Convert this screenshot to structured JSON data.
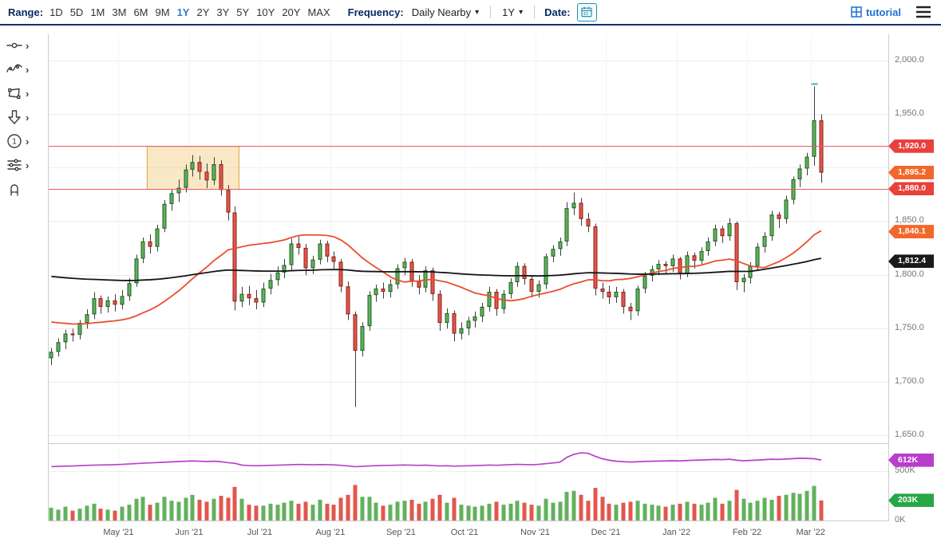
{
  "toolbar": {
    "range_label": "Range:",
    "ranges": [
      "1D",
      "5D",
      "1M",
      "3M",
      "6M",
      "9M",
      "1Y",
      "2Y",
      "3Y",
      "5Y",
      "10Y",
      "20Y",
      "MAX"
    ],
    "active_range": "1Y",
    "frequency_label": "Frequency:",
    "frequency_value": "Daily Nearby",
    "period_value": "1Y",
    "date_label": "Date:",
    "tutorial_label": "tutorial"
  },
  "icons": {
    "caret": "▾",
    "chevron": "›"
  },
  "drawing_tools": [
    {
      "name": "trendline-tool",
      "chevron": true
    },
    {
      "name": "wave-tool",
      "chevron": true
    },
    {
      "name": "shape-tool",
      "chevron": true
    },
    {
      "name": "arrow-tool",
      "chevron": true
    },
    {
      "name": "annotation-number-tool",
      "chevron": true
    },
    {
      "name": "indicator-settings-tool",
      "chevron": true
    },
    {
      "name": "magnet-tool",
      "chevron": false
    }
  ],
  "price_axis": {
    "ticks": [
      {
        "label": "2,000.0",
        "value": 2000
      },
      {
        "label": "1,950.0",
        "value": 1950
      },
      {
        "label": "1,850.0",
        "value": 1850
      },
      {
        "label": "1,800.0",
        "value": 1800
      },
      {
        "label": "1,750.0",
        "value": 1750
      },
      {
        "label": "1,700.0",
        "value": 1700
      },
      {
        "label": "1,650.0",
        "value": 1650
      }
    ]
  },
  "price_badges": [
    {
      "label": "1,920.0",
      "value": 1920.0,
      "bg": "#e8413c",
      "kind": "alert"
    },
    {
      "label": "1,895.2",
      "value": 1895.2,
      "bg": "#f2682a",
      "kind": "last"
    },
    {
      "label": "1,880.0",
      "value": 1880.0,
      "bg": "#e8413c",
      "kind": "alert"
    },
    {
      "label": "1,840.1",
      "value": 1840.1,
      "bg": "#f2682a",
      "kind": "indicator"
    },
    {
      "label": "1,812.4",
      "value": 1812.4,
      "bg": "#1a1a1a",
      "kind": "indicator"
    }
  ],
  "volume_axis": {
    "ticks": [
      {
        "label": "500K",
        "value": 500
      },
      {
        "label": "0K",
        "value": 0
      }
    ]
  },
  "volume_badges": [
    {
      "label": "612K",
      "value": 612,
      "bg": "#b93ecb",
      "kind": "open-interest"
    },
    {
      "label": "203K",
      "value": 203,
      "bg": "#28a745",
      "kind": "volume"
    }
  ],
  "chart_data": {
    "type": "candlestick",
    "ylim": [
      1645,
      2025
    ],
    "volume_ylim": [
      0,
      750
    ],
    "volume_unit": "K",
    "right_padding_bars": 9,
    "grid_values": [
      2000,
      1950,
      1900,
      1850,
      1800,
      1750,
      1700,
      1650
    ],
    "x_month_starts": [
      {
        "label": "May '21",
        "bar": 10
      },
      {
        "label": "Jun '21",
        "bar": 20
      },
      {
        "label": "Jul '21",
        "bar": 30
      },
      {
        "label": "Aug '21",
        "bar": 40
      },
      {
        "label": "Sep '21",
        "bar": 50
      },
      {
        "label": "Oct '21",
        "bar": 59
      },
      {
        "label": "Nov '21",
        "bar": 69
      },
      {
        "label": "Dec '21",
        "bar": 79
      },
      {
        "label": "Jan '22",
        "bar": 89
      },
      {
        "label": "Feb '22",
        "bar": 99
      },
      {
        "label": "Mar '22",
        "bar": 108
      }
    ],
    "alert_lines": {
      "values": [
        1920,
        1880
      ],
      "color": "#f0566a"
    },
    "highlight_box": {
      "from_bar": 14,
      "to_bar": 27,
      "top": 1920,
      "bottom": 1880,
      "fill": "rgba(243,214,150,0.55)",
      "border": "#dca33f"
    },
    "spike_marker": {
      "bar": 108,
      "color": "#35b8c4"
    },
    "moving_averages": [
      {
        "name": "sma-fast",
        "period": 25,
        "seed": 1757,
        "color": "#e8502e",
        "last_value": 1840.1
      },
      {
        "name": "sma-slow",
        "period": 100,
        "seed": 1799,
        "color": "#151515",
        "last_value": 1812.4
      }
    ],
    "last_price": 1895.2,
    "colors": {
      "up_fill": "#62b15c",
      "up_stroke": "#1d5e23",
      "down_fill": "#e2574d",
      "down_stroke": "#8e1f17",
      "wick": "#3d3d3d",
      "open_interest": "#b93ecb",
      "grid": "#ededed",
      "month_grid": "#f4f4f4",
      "frame": "#cccccc"
    },
    "ohlc": [
      [
        1722,
        1732,
        1716,
        1728
      ],
      [
        1728,
        1741,
        1724,
        1737
      ],
      [
        1737,
        1749,
        1731,
        1745
      ],
      [
        1745,
        1750,
        1738,
        1744
      ],
      [
        1744,
        1758,
        1740,
        1755
      ],
      [
        1755,
        1768,
        1750,
        1763
      ],
      [
        1763,
        1784,
        1759,
        1778
      ],
      [
        1778,
        1781,
        1764,
        1770
      ],
      [
        1770,
        1780,
        1765,
        1776
      ],
      [
        1776,
        1782,
        1766,
        1772
      ],
      [
        1772,
        1786,
        1768,
        1780
      ],
      [
        1780,
        1797,
        1776,
        1792
      ],
      [
        1792,
        1819,
        1789,
        1815
      ],
      [
        1815,
        1835,
        1811,
        1831
      ],
      [
        1831,
        1838,
        1820,
        1826
      ],
      [
        1826,
        1847,
        1822,
        1843
      ],
      [
        1843,
        1870,
        1840,
        1866
      ],
      [
        1866,
        1880,
        1860,
        1876
      ],
      [
        1876,
        1889,
        1868,
        1881
      ],
      [
        1881,
        1903,
        1877,
        1898
      ],
      [
        1898,
        1912,
        1892,
        1905
      ],
      [
        1905,
        1911,
        1889,
        1896
      ],
      [
        1896,
        1904,
        1881,
        1888
      ],
      [
        1888,
        1910,
        1884,
        1903
      ],
      [
        1903,
        1907,
        1874,
        1879
      ],
      [
        1879,
        1884,
        1851,
        1858
      ],
      [
        1858,
        1864,
        1767,
        1775
      ],
      [
        1775,
        1789,
        1770,
        1782
      ],
      [
        1782,
        1790,
        1772,
        1778
      ],
      [
        1778,
        1786,
        1768,
        1774
      ],
      [
        1774,
        1793,
        1770,
        1787
      ],
      [
        1787,
        1801,
        1782,
        1795
      ],
      [
        1795,
        1808,
        1790,
        1802
      ],
      [
        1802,
        1815,
        1797,
        1809
      ],
      [
        1809,
        1834,
        1805,
        1829
      ],
      [
        1829,
        1836,
        1819,
        1825
      ],
      [
        1825,
        1829,
        1800,
        1806
      ],
      [
        1806,
        1818,
        1801,
        1814
      ],
      [
        1814,
        1833,
        1810,
        1829
      ],
      [
        1829,
        1832,
        1812,
        1817
      ],
      [
        1817,
        1822,
        1806,
        1812
      ],
      [
        1812,
        1815,
        1784,
        1789
      ],
      [
        1789,
        1794,
        1758,
        1763
      ],
      [
        1763,
        1766,
        1677,
        1729
      ],
      [
        1729,
        1756,
        1724,
        1752
      ],
      [
        1752,
        1785,
        1748,
        1781
      ],
      [
        1781,
        1791,
        1775,
        1787
      ],
      [
        1787,
        1793,
        1778,
        1784
      ],
      [
        1784,
        1796,
        1779,
        1791
      ],
      [
        1791,
        1810,
        1787,
        1806
      ],
      [
        1806,
        1816,
        1800,
        1812
      ],
      [
        1812,
        1815,
        1789,
        1794
      ],
      [
        1794,
        1800,
        1782,
        1788
      ],
      [
        1788,
        1808,
        1784,
        1804
      ],
      [
        1804,
        1807,
        1776,
        1782
      ],
      [
        1782,
        1786,
        1748,
        1755
      ],
      [
        1755,
        1769,
        1750,
        1764
      ],
      [
        1764,
        1767,
        1738,
        1745
      ],
      [
        1745,
        1756,
        1740,
        1750
      ],
      [
        1750,
        1761,
        1744,
        1757
      ],
      [
        1757,
        1766,
        1751,
        1761
      ],
      [
        1761,
        1774,
        1756,
        1770
      ],
      [
        1770,
        1789,
        1766,
        1784
      ],
      [
        1784,
        1787,
        1762,
        1768
      ],
      [
        1768,
        1786,
        1764,
        1782
      ],
      [
        1782,
        1797,
        1778,
        1793
      ],
      [
        1793,
        1812,
        1789,
        1808
      ],
      [
        1808,
        1811,
        1791,
        1796
      ],
      [
        1796,
        1800,
        1779,
        1784
      ],
      [
        1784,
        1795,
        1779,
        1791
      ],
      [
        1791,
        1820,
        1787,
        1817
      ],
      [
        1817,
        1828,
        1812,
        1824
      ],
      [
        1824,
        1835,
        1818,
        1831
      ],
      [
        1831,
        1868,
        1827,
        1862
      ],
      [
        1862,
        1877,
        1856,
        1867
      ],
      [
        1867,
        1872,
        1846,
        1852
      ],
      [
        1852,
        1858,
        1840,
        1845
      ],
      [
        1845,
        1848,
        1781,
        1787
      ],
      [
        1787,
        1793,
        1778,
        1784
      ],
      [
        1784,
        1790,
        1773,
        1779
      ],
      [
        1779,
        1789,
        1774,
        1784
      ],
      [
        1784,
        1787,
        1764,
        1770
      ],
      [
        1770,
        1774,
        1758,
        1766
      ],
      [
        1766,
        1790,
        1762,
        1787
      ],
      [
        1787,
        1803,
        1783,
        1799
      ],
      [
        1799,
        1809,
        1794,
        1805
      ],
      [
        1805,
        1814,
        1800,
        1810
      ],
      [
        1810,
        1813,
        1801,
        1808
      ],
      [
        1808,
        1819,
        1803,
        1815
      ],
      [
        1815,
        1817,
        1796,
        1801
      ],
      [
        1801,
        1822,
        1798,
        1818
      ],
      [
        1818,
        1821,
        1806,
        1813
      ],
      [
        1813,
        1826,
        1809,
        1822
      ],
      [
        1822,
        1835,
        1818,
        1831
      ],
      [
        1831,
        1847,
        1827,
        1843
      ],
      [
        1843,
        1846,
        1830,
        1836
      ],
      [
        1836,
        1853,
        1832,
        1848
      ],
      [
        1848,
        1850,
        1786,
        1793
      ],
      [
        1793,
        1801,
        1784,
        1797
      ],
      [
        1797,
        1812,
        1792,
        1808
      ],
      [
        1808,
        1830,
        1804,
        1826
      ],
      [
        1826,
        1840,
        1821,
        1836
      ],
      [
        1836,
        1860,
        1832,
        1856
      ],
      [
        1856,
        1859,
        1844,
        1852
      ],
      [
        1852,
        1874,
        1848,
        1870
      ],
      [
        1870,
        1892,
        1866,
        1889
      ],
      [
        1889,
        1903,
        1882,
        1899
      ],
      [
        1899,
        1914,
        1893,
        1910
      ],
      [
        1910,
        1976,
        1902,
        1944
      ],
      [
        1944,
        1950,
        1886,
        1895.2
      ]
    ],
    "volume": [
      130,
      110,
      140,
      100,
      120,
      150,
      170,
      120,
      110,
      100,
      140,
      160,
      220,
      240,
      160,
      180,
      240,
      200,
      190,
      230,
      260,
      210,
      190,
      220,
      250,
      230,
      340,
      220,
      160,
      150,
      150,
      170,
      160,
      180,
      200,
      170,
      190,
      160,
      210,
      170,
      160,
      230,
      260,
      360,
      240,
      240,
      180,
      150,
      160,
      190,
      200,
      210,
      170,
      190,
      220,
      260,
      180,
      230,
      160,
      150,
      140,
      150,
      170,
      190,
      160,
      170,
      200,
      180,
      160,
      150,
      220,
      180,
      190,
      290,
      300,
      260,
      200,
      330,
      240,
      170,
      160,
      180,
      190,
      200,
      170,
      160,
      150,
      140,
      160,
      170,
      190,
      170,
      160,
      180,
      230,
      170,
      200,
      310,
      220,
      180,
      200,
      230,
      210,
      250,
      260,
      280,
      270,
      300,
      350,
      203
    ],
    "open_interest": [
      545,
      548,
      550,
      552,
      555,
      558,
      560,
      562,
      563,
      565,
      568,
      572,
      576,
      580,
      583,
      586,
      590,
      594,
      597,
      600,
      603,
      600,
      597,
      600,
      595,
      585,
      578,
      560,
      556,
      554,
      556,
      558,
      560,
      562,
      565,
      567,
      566,
      564,
      566,
      565,
      563,
      558,
      552,
      545,
      548,
      552,
      555,
      557,
      558,
      560,
      562,
      560,
      558,
      560,
      556,
      552,
      554,
      550,
      552,
      554,
      556,
      558,
      561,
      559,
      562,
      565,
      568,
      566,
      564,
      568,
      575,
      582,
      590,
      640,
      670,
      685,
      680,
      650,
      625,
      610,
      600,
      595,
      592,
      595,
      598,
      600,
      602,
      603,
      605,
      603,
      607,
      610,
      612,
      615,
      618,
      616,
      620,
      610,
      605,
      608,
      612,
      616,
      620,
      618,
      622,
      626,
      630,
      628,
      625,
      612
    ]
  }
}
